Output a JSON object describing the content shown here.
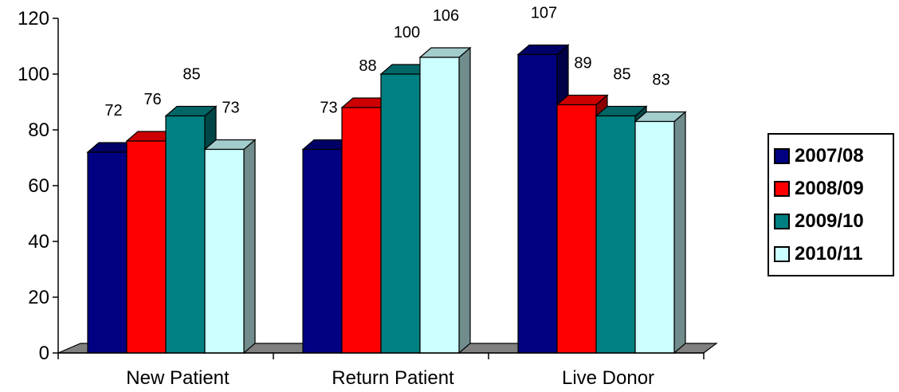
{
  "chart_data": {
    "type": "bar",
    "style": "3d-clustered-column",
    "categories": [
      "New Patient",
      "Return Patient",
      "Live Donor"
    ],
    "series": [
      {
        "name": "2007/08",
        "values": [
          72,
          73,
          107
        ],
        "color": "#000080"
      },
      {
        "name": "2008/09",
        "values": [
          76,
          88,
          89
        ],
        "color": "#ff0000"
      },
      {
        "name": "2009/10",
        "values": [
          85,
          100,
          85
        ],
        "color": "#008080"
      },
      {
        "name": "2010/11",
        "values": [
          73,
          106,
          83
        ],
        "color": "#ccffff"
      }
    ],
    "yticks": [
      "0",
      "20",
      "40",
      "60",
      "80",
      "100",
      "120"
    ],
    "ylim": [
      0,
      120
    ],
    "grid": false,
    "legend_position": "right",
    "data_labels": true,
    "floor_color": "#808080"
  }
}
